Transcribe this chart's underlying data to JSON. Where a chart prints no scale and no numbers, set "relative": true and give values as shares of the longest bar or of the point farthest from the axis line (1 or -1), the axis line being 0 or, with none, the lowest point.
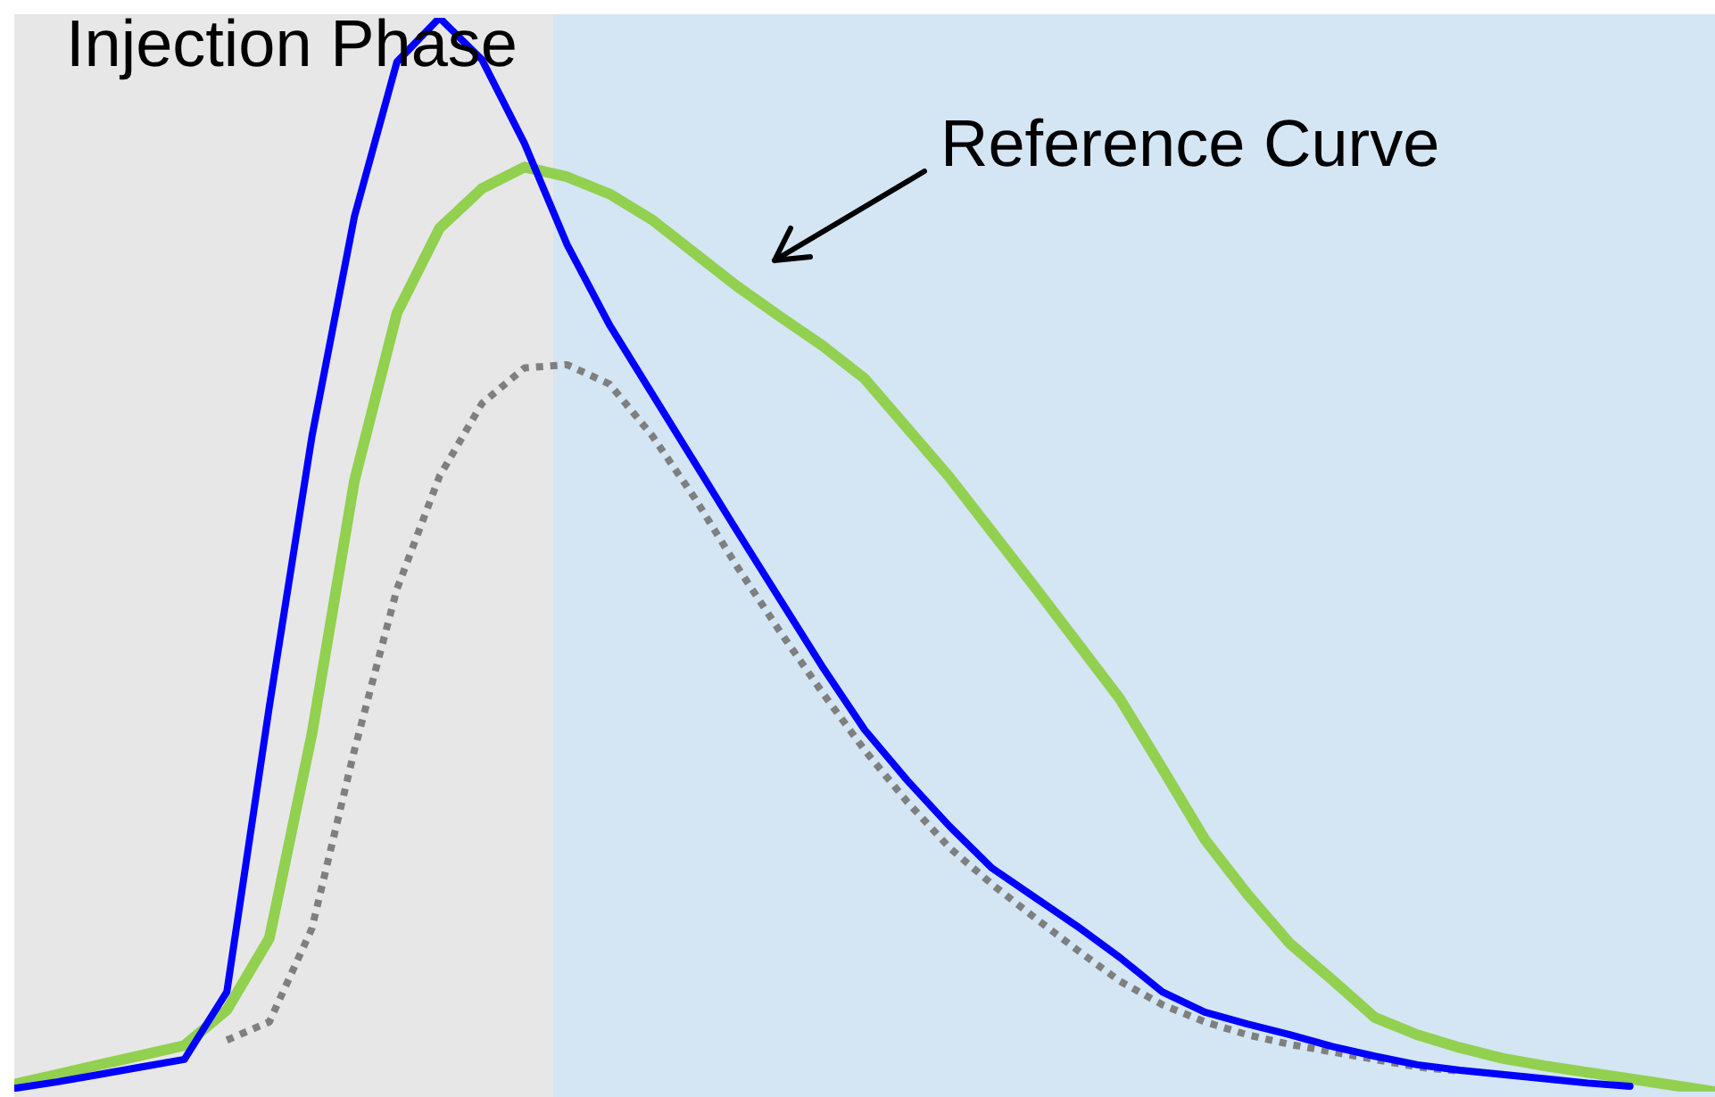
{
  "chart_data": {
    "type": "line",
    "relative": true,
    "legend": false,
    "marker": "none",
    "categories": [
      null,
      null,
      null,
      null,
      null,
      null,
      null,
      null,
      null,
      null,
      null,
      null,
      null,
      null,
      null,
      null,
      null,
      null,
      null,
      null,
      null,
      null,
      null,
      null,
      null,
      null,
      null,
      null,
      null,
      null,
      null,
      null,
      null,
      null,
      null,
      null,
      null,
      null,
      null,
      null,
      null
    ],
    "series": [
      {
        "color": "#0000ff",
        "values": [
          0.003,
          0.009,
          0.016,
          0.023,
          0.03,
          0.093,
          0.359,
          0.61,
          0.815,
          0.959,
          1,
          0.961,
          0.883,
          0.789,
          0.714,
          0.65,
          0.586,
          0.522,
          0.459,
          0.396,
          0.337,
          0.29,
          0.247,
          0.208,
          0.181,
          0.154,
          0.125,
          0.093,
          0.074,
          0.063,
          0.053,
          0.042,
          0.033,
          0.025,
          0.02,
          0.016,
          0.012,
          0.008,
          0.005,
          null,
          null
        ]
      },
      {
        "color": "#92d050",
        "values": [
          0.007,
          0.016,
          0.025,
          0.034,
          0.043,
          0.076,
          0.143,
          0.333,
          0.569,
          0.725,
          0.804,
          0.841,
          0.861,
          0.852,
          0.836,
          0.812,
          0.781,
          0.75,
          0.722,
          0.695,
          0.664,
          0.618,
          0.572,
          0.521,
          0.47,
          0.418,
          0.366,
          0.301,
          0.235,
          0.184,
          0.138,
          0.104,
          0.069,
          0.053,
          0.041,
          0.031,
          0.024,
          0.018,
          0.012,
          0.006,
          0
        ]
      },
      {
        "color": "#7f7f7f",
        "line_style": "dotted",
        "values": [
          null,
          null,
          null,
          null,
          null,
          0.048,
          0.065,
          0.152,
          0.318,
          0.468,
          0.573,
          0.641,
          0.674,
          0.677,
          0.659,
          0.611,
          0.553,
          0.489,
          0.429,
          0.372,
          0.318,
          0.27,
          0.227,
          0.193,
          0.162,
          0.132,
          0.103,
          0.081,
          0.065,
          0.053,
          0.044,
          0.037,
          0.03,
          0.023,
          0.019,
          null,
          null,
          null,
          null,
          null,
          null
        ]
      }
    ],
    "annotations": [
      "Injection Phase",
      "Reference Curve"
    ]
  }
}
